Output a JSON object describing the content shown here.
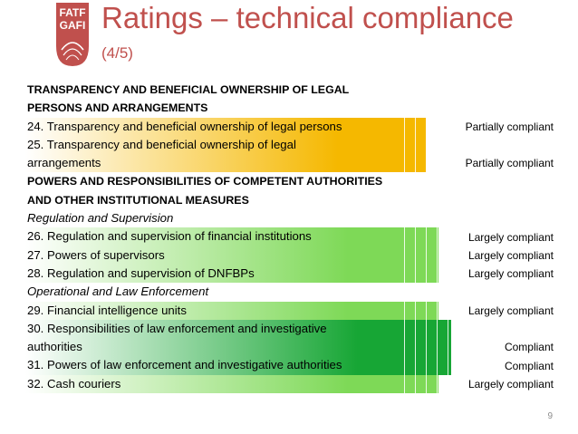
{
  "logo": {
    "text_top": "FATF",
    "text_bottom": "GAFI"
  },
  "title": "Ratings – technical compliance",
  "subtitle": "(4/5)",
  "colors": {
    "accent": "#C0504D",
    "partial": "#F5B800",
    "largely": "#7ED957",
    "compliant": "#17A635"
  },
  "rows": [
    {
      "kind": "heading",
      "lines": [
        "TRANSPARENCY AND BENEFICIAL OWNERSHIP OF LEGAL",
        "PERSONS AND ARRANGEMENTS"
      ],
      "rating": "",
      "level": ""
    },
    {
      "kind": "item",
      "lines": [
        "24. Transparency and beneficial ownership of legal persons"
      ],
      "rating": "Partially compliant",
      "level": "partial"
    },
    {
      "kind": "item",
      "lines": [
        "25. Transparency and beneficial ownership of legal",
        "arrangements"
      ],
      "rating": "Partially compliant",
      "level": "partial"
    },
    {
      "kind": "heading",
      "lines": [
        "POWERS AND RESPONSIBILITIES OF COMPETENT AUTHORITIES",
        "AND OTHER INSTITUTIONAL MEASURES"
      ],
      "rating": "",
      "level": ""
    },
    {
      "kind": "subheading",
      "lines": [
        "Regulation and Supervision"
      ],
      "rating": "",
      "level": ""
    },
    {
      "kind": "item",
      "lines": [
        "26. Regulation and supervision of financial institutions"
      ],
      "rating": "Largely compliant",
      "level": "largely"
    },
    {
      "kind": "item",
      "lines": [
        "27. Powers of supervisors"
      ],
      "rating": "Largely compliant",
      "level": "largely"
    },
    {
      "kind": "item",
      "lines": [
        "28. Regulation and supervision of DNFBPs"
      ],
      "rating": "Largely compliant",
      "level": "largely"
    },
    {
      "kind": "subheading",
      "lines": [
        "Operational and Law Enforcement"
      ],
      "rating": "",
      "level": ""
    },
    {
      "kind": "item",
      "lines": [
        "29. Financial intelligence units"
      ],
      "rating": "Largely compliant",
      "level": "largely"
    },
    {
      "kind": "item",
      "lines": [
        "30. Responsibilities of law enforcement and investigative",
        "authorities"
      ],
      "rating": "Compliant",
      "level": "compliant"
    },
    {
      "kind": "item",
      "lines": [
        "31. Powers of law enforcement and investigative authorities"
      ],
      "rating": "Compliant",
      "level": "compliant"
    },
    {
      "kind": "item",
      "lines": [
        "32. Cash couriers"
      ],
      "rating": "Largely compliant",
      "level": "largely"
    }
  ],
  "page_number": "9"
}
